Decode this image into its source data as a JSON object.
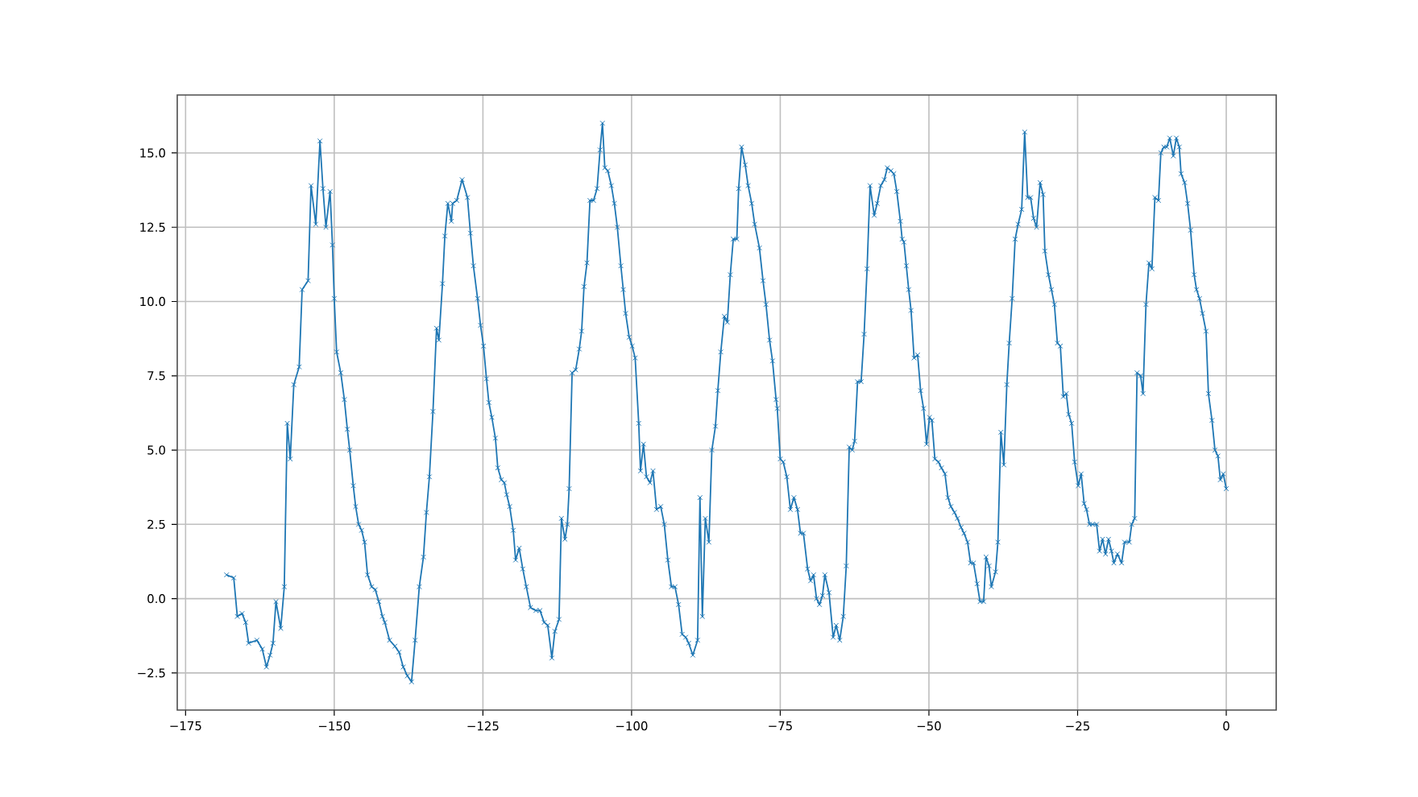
{
  "chart_data": {
    "type": "line",
    "color": "#1f77b4",
    "marker": "cross",
    "line_style": "solid",
    "grid": true,
    "xlim": [
      -176.4,
      8.4
    ],
    "ylim": [
      -3.75,
      16.95
    ],
    "xticks": [
      {
        "value": -175,
        "label": "−175"
      },
      {
        "value": -150,
        "label": "−150"
      },
      {
        "value": -125,
        "label": "−125"
      },
      {
        "value": -100,
        "label": "−100"
      },
      {
        "value": -75,
        "label": "−75"
      },
      {
        "value": -50,
        "label": "−50"
      },
      {
        "value": -25,
        "label": "−25"
      },
      {
        "value": 0,
        "label": "0"
      }
    ],
    "yticks": [
      {
        "value": -2.5,
        "label": "−2.5"
      },
      {
        "value": 0,
        "label": "0.0"
      },
      {
        "value": 2.5,
        "label": "2.5"
      },
      {
        "value": 5,
        "label": "5.0"
      },
      {
        "value": 7.5,
        "label": "7.5"
      },
      {
        "value": 10,
        "label": "10.0"
      },
      {
        "value": 12.5,
        "label": "12.5"
      },
      {
        "value": 15,
        "label": "15.0"
      }
    ],
    "x": [
      -168.1,
      -166.9,
      -166.3,
      -165.5,
      -164.9,
      -164.4,
      -163.0,
      -162.1,
      -161.4,
      -160.8,
      -160.3,
      -159.8,
      -159.0,
      -158.4,
      -157.9,
      -157.4,
      -156.8,
      -155.9,
      -155.4,
      -154.4,
      -153.9,
      -153.1,
      -152.4,
      -151.9,
      -151.4,
      -150.7,
      -150.3,
      -150.0,
      -149.6,
      -148.9,
      -148.3,
      -147.8,
      -147.4,
      -146.8,
      -146.4,
      -145.9,
      -145.4,
      -144.9,
      -144.4,
      -143.7,
      -143.1,
      -142.5,
      -141.9,
      -141.5,
      -140.7,
      -139.8,
      -139.1,
      -138.4,
      -137.7,
      -137.0,
      -136.4,
      -135.7,
      -135.0,
      -134.5,
      -134.0,
      -133.4,
      -132.8,
      -132.4,
      -131.8,
      -131.4,
      -130.9,
      -130.3,
      -130.1,
      -129.4,
      -128.5,
      -127.6,
      -127.1,
      -126.6,
      -125.9,
      -125.4,
      -124.9,
      -124.4,
      -124.0,
      -123.5,
      -122.9,
      -122.5,
      -121.9,
      -121.4,
      -121.0,
      -120.5,
      -119.9,
      -119.5,
      -118.9,
      -118.3,
      -117.7,
      -117.0,
      -116.1,
      -115.4,
      -114.7,
      -114.1,
      -113.4,
      -112.9,
      -112.2,
      -111.8,
      -111.2,
      -110.8,
      -110.5,
      -110.0,
      -109.4,
      -108.8,
      -108.4,
      -108.0,
      -107.5,
      -107.0,
      -106.4,
      -105.8,
      -105.3,
      -104.9,
      -104.5,
      -104.0,
      -103.4,
      -102.9,
      -102.4,
      -101.8,
      -101.4,
      -101.0,
      -100.4,
      -99.9,
      -99.4,
      -98.8,
      -98.5,
      -98.0,
      -97.5,
      -96.9,
      -96.4,
      -95.8,
      -95.1,
      -94.5,
      -93.9,
      -93.3,
      -92.7,
      -92.1,
      -91.5,
      -90.9,
      -90.4,
      -89.7,
      -88.9,
      -88.5,
      -88.1,
      -87.6,
      -87.0,
      -86.5,
      -85.9,
      -85.5,
      -85.0,
      -84.4,
      -83.9,
      -83.4,
      -82.9,
      -82.3,
      -82.0,
      -81.5,
      -80.9,
      -80.4,
      -79.8,
      -79.3,
      -78.5,
      -77.9,
      -77.4,
      -76.8,
      -76.3,
      -75.7,
      -75.5,
      -75.0,
      -74.5,
      -73.9,
      -73.3,
      -72.7,
      -72.1,
      -71.6,
      -71.1,
      -70.4,
      -69.9,
      -69.4,
      -68.9,
      -68.4,
      -67.9,
      -67.5,
      -66.8,
      -66.1,
      -65.6,
      -65.0,
      -64.4,
      -63.9,
      -63.4,
      -62.9,
      -62.5,
      -62.0,
      -61.4,
      -60.9,
      -60.4,
      -59.9,
      -59.2,
      -58.7,
      -58.1,
      -57.5,
      -57.0,
      -56.4,
      -55.9,
      -55.4,
      -54.8,
      -54.5,
      -54.2,
      -53.8,
      -53.4,
      -53.0,
      -52.5,
      -51.9,
      -51.4,
      -50.9,
      -50.4,
      -49.9,
      -49.5,
      -49.0,
      -48.4,
      -47.9,
      -47.3,
      -46.8,
      -46.3,
      -45.7,
      -45.2,
      -44.6,
      -44.1,
      -43.5,
      -43.0,
      -42.5,
      -41.9,
      -41.4,
      -40.8,
      -40.4,
      -39.9,
      -39.5,
      -38.8,
      -38.4,
      -37.9,
      -37.4,
      -36.9,
      -36.5,
      -36.0,
      -35.5,
      -35.0,
      -34.4,
      -33.9,
      -33.4,
      -32.9,
      -32.4,
      -31.9,
      -31.3,
      -30.8,
      -30.5,
      -29.9,
      -29.4,
      -28.9,
      -28.4,
      -27.9,
      -27.4,
      -26.9,
      -26.5,
      -26.0,
      -25.5,
      -24.9,
      -24.4,
      -23.9,
      -23.5,
      -23.0,
      -22.5,
      -21.8,
      -21.3,
      -20.8,
      -20.3,
      -19.8,
      -19.3,
      -18.9,
      -18.3,
      -17.6,
      -17.1,
      -16.3,
      -15.9,
      -15.4,
      -15.0,
      -14.4,
      -14.0,
      -13.5,
      -13.0,
      -12.5,
      -12.0,
      -11.4,
      -11.0,
      -10.5,
      -10.0,
      -9.5,
      -8.9,
      -8.4,
      -7.9,
      -7.6,
      -7.0,
      -6.5,
      -6.0,
      -5.4,
      -5.0,
      -4.5,
      -4.0,
      -3.4,
      -3.0,
      -2.4,
      -1.9,
      -1.4,
      -1.0,
      -0.5,
      0.0
    ],
    "values": [
      0.8,
      0.7,
      -0.6,
      -0.5,
      -0.8,
      -1.5,
      -1.4,
      -1.7,
      -2.3,
      -1.9,
      -1.5,
      -0.1,
      -1.0,
      0.4,
      5.9,
      4.7,
      7.2,
      7.8,
      10.4,
      10.7,
      13.9,
      12.6,
      15.4,
      13.8,
      12.5,
      13.7,
      11.9,
      10.1,
      8.3,
      7.6,
      6.7,
      5.7,
      5.0,
      3.8,
      3.1,
      2.5,
      2.3,
      1.9,
      0.8,
      0.4,
      0.3,
      -0.1,
      -0.6,
      -0.8,
      -1.4,
      -1.6,
      -1.8,
      -2.3,
      -2.6,
      -2.8,
      -1.4,
      0.4,
      1.4,
      2.9,
      4.1,
      6.3,
      9.1,
      8.7,
      10.6,
      12.2,
      13.3,
      12.7,
      13.3,
      13.4,
      14.1,
      13.5,
      12.3,
      11.2,
      10.1,
      9.2,
      8.5,
      7.4,
      6.6,
      6.1,
      5.4,
      4.4,
      4.0,
      3.9,
      3.5,
      3.1,
      2.3,
      1.3,
      1.7,
      1.0,
      0.4,
      -0.3,
      -0.4,
      -0.4,
      -0.8,
      -0.9,
      -2.0,
      -1.1,
      -0.7,
      2.7,
      2.0,
      2.5,
      3.7,
      7.6,
      7.7,
      8.4,
      9.0,
      10.5,
      11.3,
      13.4,
      13.4,
      13.8,
      15.1,
      16.0,
      14.5,
      14.4,
      13.9,
      13.3,
      12.5,
      11.2,
      10.4,
      9.6,
      8.8,
      8.5,
      8.1,
      5.9,
      4.3,
      5.2,
      4.1,
      3.9,
      4.3,
      3.0,
      3.1,
      2.5,
      1.3,
      0.4,
      0.4,
      -0.2,
      -1.2,
      -1.3,
      -1.5,
      -1.9,
      -1.4,
      3.4,
      -0.6,
      2.7,
      1.9,
      5.0,
      5.8,
      7.0,
      8.3,
      9.5,
      9.3,
      10.9,
      12.1,
      12.1,
      13.8,
      15.2,
      14.6,
      13.9,
      13.3,
      12.6,
      11.8,
      10.7,
      9.9,
      8.7,
      8.0,
      6.7,
      6.4,
      4.7,
      4.6,
      4.1,
      3.0,
      3.4,
      3.0,
      2.2,
      2.2,
      1.0,
      0.6,
      0.8,
      0.0,
      -0.2,
      0.1,
      0.8,
      0.2,
      -1.3,
      -0.9,
      -1.4,
      -0.6,
      1.1,
      5.1,
      5.0,
      5.3,
      7.3,
      7.3,
      8.9,
      11.1,
      13.9,
      12.9,
      13.3,
      13.9,
      14.1,
      14.5,
      14.4,
      14.3,
      13.7,
      12.7,
      12.1,
      12.0,
      11.2,
      10.4,
      9.7,
      8.1,
      8.2,
      7.0,
      6.4,
      5.2,
      6.1,
      6.0,
      4.7,
      4.6,
      4.4,
      4.2,
      3.4,
      3.1,
      2.9,
      2.7,
      2.4,
      2.2,
      1.9,
      1.2,
      1.2,
      0.5,
      -0.1,
      -0.1,
      1.4,
      1.1,
      0.4,
      0.9,
      1.9,
      5.6,
      4.5,
      7.2,
      8.6,
      10.1,
      12.1,
      12.6,
      13.1,
      15.7,
      13.5,
      13.5,
      12.8,
      12.5,
      14.0,
      13.6,
      11.7,
      10.9,
      10.4,
      9.9,
      8.6,
      8.5,
      6.8,
      6.9,
      6.2,
      5.9,
      4.6,
      3.8,
      4.2,
      3.2,
      3.0,
      2.5,
      2.5,
      2.5,
      1.6,
      2.0,
      1.5,
      2.0,
      1.6,
      1.2,
      1.5,
      1.2,
      1.9,
      1.9,
      2.5,
      2.7,
      7.6,
      7.5,
      6.9,
      9.9,
      11.3,
      11.1,
      13.5,
      13.4,
      15.0,
      15.2,
      15.2,
      15.5,
      14.9,
      15.5,
      15.2,
      14.3,
      14.0,
      13.3,
      12.4,
      10.9,
      10.4,
      10.1,
      9.6,
      9.0,
      6.9,
      6.0,
      5.0,
      4.8,
      4.0,
      4.2,
      3.7
    ]
  }
}
